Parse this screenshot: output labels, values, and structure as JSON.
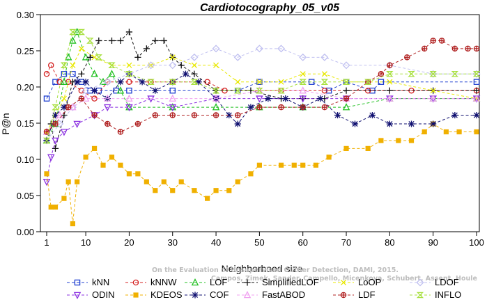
{
  "chart_data": {
    "type": "line",
    "title": "Cardiotocography_05_v05",
    "xlabel": "Neighborhood size",
    "ylabel": "P@n",
    "xlim": [
      1,
      100
    ],
    "ylim": [
      0,
      0.3
    ],
    "x_ticks": [
      "1",
      "10",
      "20",
      "30",
      "40",
      "50",
      "60",
      "70",
      "80",
      "90",
      "100"
    ],
    "y_ticks": [
      "0.00",
      "0.05",
      "0.10",
      "0.15",
      "0.20",
      "0.25",
      "0.30"
    ],
    "credit_lines": [
      "Campos, Zimek, Sander, Campello, Micenkova, Schubert, Assent, Houle",
      "On the Evaluation of Unsupervised Outlier Detection, DAMI, 2015."
    ],
    "series": [
      {
        "name": "kNN",
        "color": "#1f3fd0",
        "marker": "square",
        "points": [
          [
            1,
            0.184
          ],
          [
            3,
            0.207
          ],
          [
            5,
            0.218
          ],
          [
            7,
            0.218
          ],
          [
            9,
            0.207
          ],
          [
            11,
            0.195
          ],
          [
            13,
            0.195
          ],
          [
            17,
            0.195
          ],
          [
            20,
            0.195
          ],
          [
            30,
            0.195
          ],
          [
            45,
            0.195
          ],
          [
            50,
            0.207
          ],
          [
            62,
            0.207
          ],
          [
            66,
            0.195
          ],
          [
            70,
            0.207
          ],
          [
            76,
            0.195
          ],
          [
            78,
            0.207
          ],
          [
            100,
            0.207
          ]
        ]
      },
      {
        "name": "kNNW",
        "color": "#d42020",
        "marker": "circle",
        "points": [
          [
            1,
            0.218
          ],
          [
            2,
            0.23
          ],
          [
            4,
            0.207
          ],
          [
            6,
            0.207
          ],
          [
            9,
            0.195
          ],
          [
            12,
            0.184
          ],
          [
            15,
            0.207
          ],
          [
            20,
            0.207
          ],
          [
            25,
            0.207
          ],
          [
            30,
            0.207
          ],
          [
            38,
            0.207
          ],
          [
            42,
            0.195
          ],
          [
            55,
            0.195
          ],
          [
            65,
            0.195
          ],
          [
            75,
            0.195
          ],
          [
            85,
            0.195
          ],
          [
            100,
            0.195
          ]
        ]
      },
      {
        "name": "LOF",
        "color": "#20c020",
        "marker": "triangle",
        "points": [
          [
            1,
            0.126
          ],
          [
            3,
            0.149
          ],
          [
            5,
            0.207
          ],
          [
            6,
            0.241
          ],
          [
            7,
            0.264
          ],
          [
            8,
            0.276
          ],
          [
            10,
            0.241
          ],
          [
            12,
            0.218
          ],
          [
            14,
            0.207
          ],
          [
            16,
            0.218
          ],
          [
            18,
            0.195
          ],
          [
            20,
            0.172
          ],
          [
            30,
            0.172
          ],
          [
            40,
            0.172
          ],
          [
            50,
            0.172
          ],
          [
            60,
            0.172
          ],
          [
            70,
            0.172
          ],
          [
            80,
            0.184
          ],
          [
            90,
            0.184
          ],
          [
            100,
            0.184
          ]
        ]
      },
      {
        "name": "SimplifiedLOF",
        "color": "#111111",
        "marker": "plus",
        "points": [
          [
            1,
            0.126
          ],
          [
            2,
            0.149
          ],
          [
            3,
            0.115
          ],
          [
            5,
            0.161
          ],
          [
            7,
            0.207
          ],
          [
            9,
            0.218
          ],
          [
            11,
            0.241
          ],
          [
            13,
            0.264
          ],
          [
            16,
            0.264
          ],
          [
            18,
            0.264
          ],
          [
            20,
            0.276
          ],
          [
            22,
            0.241
          ],
          [
            24,
            0.253
          ],
          [
            26,
            0.264
          ],
          [
            28,
            0.264
          ],
          [
            30,
            0.241
          ],
          [
            32,
            0.23
          ],
          [
            35,
            0.218
          ],
          [
            40,
            0.195
          ],
          [
            48,
            0.195
          ],
          [
            55,
            0.184
          ],
          [
            60,
            0.184
          ],
          [
            65,
            0.184
          ],
          [
            70,
            0.195
          ],
          [
            80,
            0.195
          ],
          [
            90,
            0.195
          ],
          [
            100,
            0.195
          ]
        ]
      },
      {
        "name": "LoOP",
        "color": "#e8e800",
        "marker": "cross",
        "points": [
          [
            1,
            0.138
          ],
          [
            3,
            0.161
          ],
          [
            5,
            0.184
          ],
          [
            7,
            0.23
          ],
          [
            9,
            0.253
          ],
          [
            12,
            0.241
          ],
          [
            16,
            0.23
          ],
          [
            20,
            0.23
          ],
          [
            25,
            0.23
          ],
          [
            30,
            0.241
          ],
          [
            35,
            0.23
          ],
          [
            40,
            0.23
          ],
          [
            45,
            0.207
          ],
          [
            50,
            0.207
          ],
          [
            55,
            0.207
          ],
          [
            60,
            0.218
          ],
          [
            65,
            0.218
          ],
          [
            70,
            0.207
          ],
          [
            80,
            0.207
          ],
          [
            90,
            0.195
          ],
          [
            100,
            0.184
          ]
        ]
      },
      {
        "name": "LDOF",
        "color": "#c0c0f0",
        "marker": "diamond",
        "points": [
          [
            1,
            0.126
          ],
          [
            4,
            0.149
          ],
          [
            7,
            0.172
          ],
          [
            10,
            0.195
          ],
          [
            15,
            0.207
          ],
          [
            20,
            0.218
          ],
          [
            25,
            0.23
          ],
          [
            30,
            0.23
          ],
          [
            35,
            0.241
          ],
          [
            40,
            0.253
          ],
          [
            45,
            0.241
          ],
          [
            50,
            0.253
          ],
          [
            55,
            0.253
          ],
          [
            60,
            0.241
          ],
          [
            65,
            0.241
          ],
          [
            70,
            0.23
          ],
          [
            80,
            0.23
          ],
          [
            90,
            0.218
          ],
          [
            100,
            0.218
          ]
        ]
      },
      {
        "name": "ODIN",
        "color": "#8b30e0",
        "marker": "triangle-down",
        "points": [
          [
            1,
            0.069
          ],
          [
            2,
            0.103
          ],
          [
            3,
            0.126
          ],
          [
            5,
            0.138
          ],
          [
            8,
            0.149
          ],
          [
            12,
            0.161
          ],
          [
            15,
            0.172
          ],
          [
            20,
            0.172
          ],
          [
            25,
            0.184
          ],
          [
            30,
            0.172
          ],
          [
            40,
            0.184
          ],
          [
            50,
            0.184
          ],
          [
            60,
            0.184
          ],
          [
            70,
            0.184
          ],
          [
            80,
            0.184
          ],
          [
            90,
            0.184
          ],
          [
            100,
            0.184
          ]
        ]
      },
      {
        "name": "KDEOS",
        "color": "#f0b000",
        "marker": "filled-square",
        "points": [
          [
            1,
            0.08
          ],
          [
            2,
            0.034
          ],
          [
            3,
            0.034
          ],
          [
            5,
            0.046
          ],
          [
            6,
            0.069
          ],
          [
            7,
            0.011
          ],
          [
            8,
            0.069
          ],
          [
            10,
            0.103
          ],
          [
            12,
            0.115
          ],
          [
            14,
            0.092
          ],
          [
            16,
            0.103
          ],
          [
            18,
            0.092
          ],
          [
            20,
            0.08
          ],
          [
            22,
            0.08
          ],
          [
            24,
            0.069
          ],
          [
            26,
            0.057
          ],
          [
            28,
            0.069
          ],
          [
            30,
            0.057
          ],
          [
            32,
            0.069
          ],
          [
            35,
            0.057
          ],
          [
            38,
            0.046
          ],
          [
            40,
            0.057
          ],
          [
            43,
            0.057
          ],
          [
            45,
            0.069
          ],
          [
            48,
            0.08
          ],
          [
            50,
            0.092
          ],
          [
            55,
            0.092
          ],
          [
            58,
            0.092
          ],
          [
            60,
            0.092
          ],
          [
            63,
            0.092
          ],
          [
            66,
            0.103
          ],
          [
            70,
            0.115
          ],
          [
            75,
            0.115
          ],
          [
            78,
            0.126
          ],
          [
            82,
            0.126
          ],
          [
            85,
            0.126
          ],
          [
            88,
            0.138
          ],
          [
            90,
            0.149
          ],
          [
            93,
            0.138
          ],
          [
            96,
            0.138
          ],
          [
            100,
            0.138
          ]
        ]
      },
      {
        "name": "COF",
        "color": "#101070",
        "marker": "asterisk",
        "points": [
          [
            1,
            0.126
          ],
          [
            3,
            0.161
          ],
          [
            5,
            0.172
          ],
          [
            8,
            0.207
          ],
          [
            10,
            0.207
          ],
          [
            12,
            0.195
          ],
          [
            15,
            0.184
          ],
          [
            18,
            0.207
          ],
          [
            20,
            0.218
          ],
          [
            23,
            0.207
          ],
          [
            26,
            0.195
          ],
          [
            30,
            0.207
          ],
          [
            33,
            0.218
          ],
          [
            36,
            0.207
          ],
          [
            40,
            0.184
          ],
          [
            43,
            0.161
          ],
          [
            45,
            0.149
          ],
          [
            48,
            0.172
          ],
          [
            52,
            0.184
          ],
          [
            56,
            0.184
          ],
          [
            60,
            0.172
          ],
          [
            64,
            0.184
          ],
          [
            68,
            0.161
          ],
          [
            72,
            0.149
          ],
          [
            76,
            0.161
          ],
          [
            80,
            0.149
          ],
          [
            85,
            0.149
          ],
          [
            90,
            0.149
          ],
          [
            95,
            0.161
          ],
          [
            100,
            0.161
          ]
        ]
      },
      {
        "name": "FastABOD",
        "color": "#f0a0f0",
        "marker": "triangle",
        "points": [
          [
            1,
            0.138
          ],
          [
            4,
            0.161
          ],
          [
            7,
            0.172
          ],
          [
            10,
            0.184
          ],
          [
            15,
            0.184
          ],
          [
            20,
            0.184
          ],
          [
            30,
            0.184
          ],
          [
            40,
            0.184
          ],
          [
            50,
            0.195
          ],
          [
            60,
            0.195
          ],
          [
            70,
            0.184
          ],
          [
            80,
            0.184
          ],
          [
            90,
            0.184
          ],
          [
            100,
            0.184
          ]
        ]
      },
      {
        "name": "LDF",
        "color": "#b02020",
        "marker": "circle-plus",
        "points": [
          [
            1,
            0.138
          ],
          [
            3,
            0.149
          ],
          [
            6,
            0.172
          ],
          [
            9,
            0.184
          ],
          [
            12,
            0.161
          ],
          [
            15,
            0.149
          ],
          [
            18,
            0.138
          ],
          [
            22,
            0.149
          ],
          [
            26,
            0.161
          ],
          [
            30,
            0.161
          ],
          [
            35,
            0.161
          ],
          [
            40,
            0.161
          ],
          [
            45,
            0.161
          ],
          [
            50,
            0.172
          ],
          [
            55,
            0.172
          ],
          [
            60,
            0.172
          ],
          [
            65,
            0.172
          ],
          [
            70,
            0.184
          ],
          [
            75,
            0.207
          ],
          [
            78,
            0.218
          ],
          [
            80,
            0.23
          ],
          [
            84,
            0.241
          ],
          [
            88,
            0.253
          ],
          [
            90,
            0.264
          ],
          [
            92,
            0.264
          ],
          [
            95,
            0.253
          ],
          [
            98,
            0.253
          ],
          [
            100,
            0.253
          ]
        ]
      },
      {
        "name": "INFLO",
        "color": "#a8e040",
        "marker": "hourglass",
        "points": [
          [
            1,
            0.126
          ],
          [
            3,
            0.172
          ],
          [
            5,
            0.23
          ],
          [
            7,
            0.276
          ],
          [
            9,
            0.276
          ],
          [
            11,
            0.264
          ],
          [
            13,
            0.241
          ],
          [
            16,
            0.23
          ],
          [
            20,
            0.218
          ],
          [
            25,
            0.207
          ],
          [
            30,
            0.207
          ],
          [
            35,
            0.207
          ],
          [
            40,
            0.195
          ],
          [
            45,
            0.195
          ],
          [
            50,
            0.195
          ],
          [
            55,
            0.195
          ],
          [
            60,
            0.207
          ],
          [
            65,
            0.207
          ],
          [
            70,
            0.207
          ],
          [
            75,
            0.207
          ],
          [
            80,
            0.218
          ],
          [
            85,
            0.218
          ],
          [
            90,
            0.218
          ],
          [
            95,
            0.218
          ],
          [
            100,
            0.218
          ]
        ]
      }
    ],
    "legend_placement": "bottom"
  }
}
